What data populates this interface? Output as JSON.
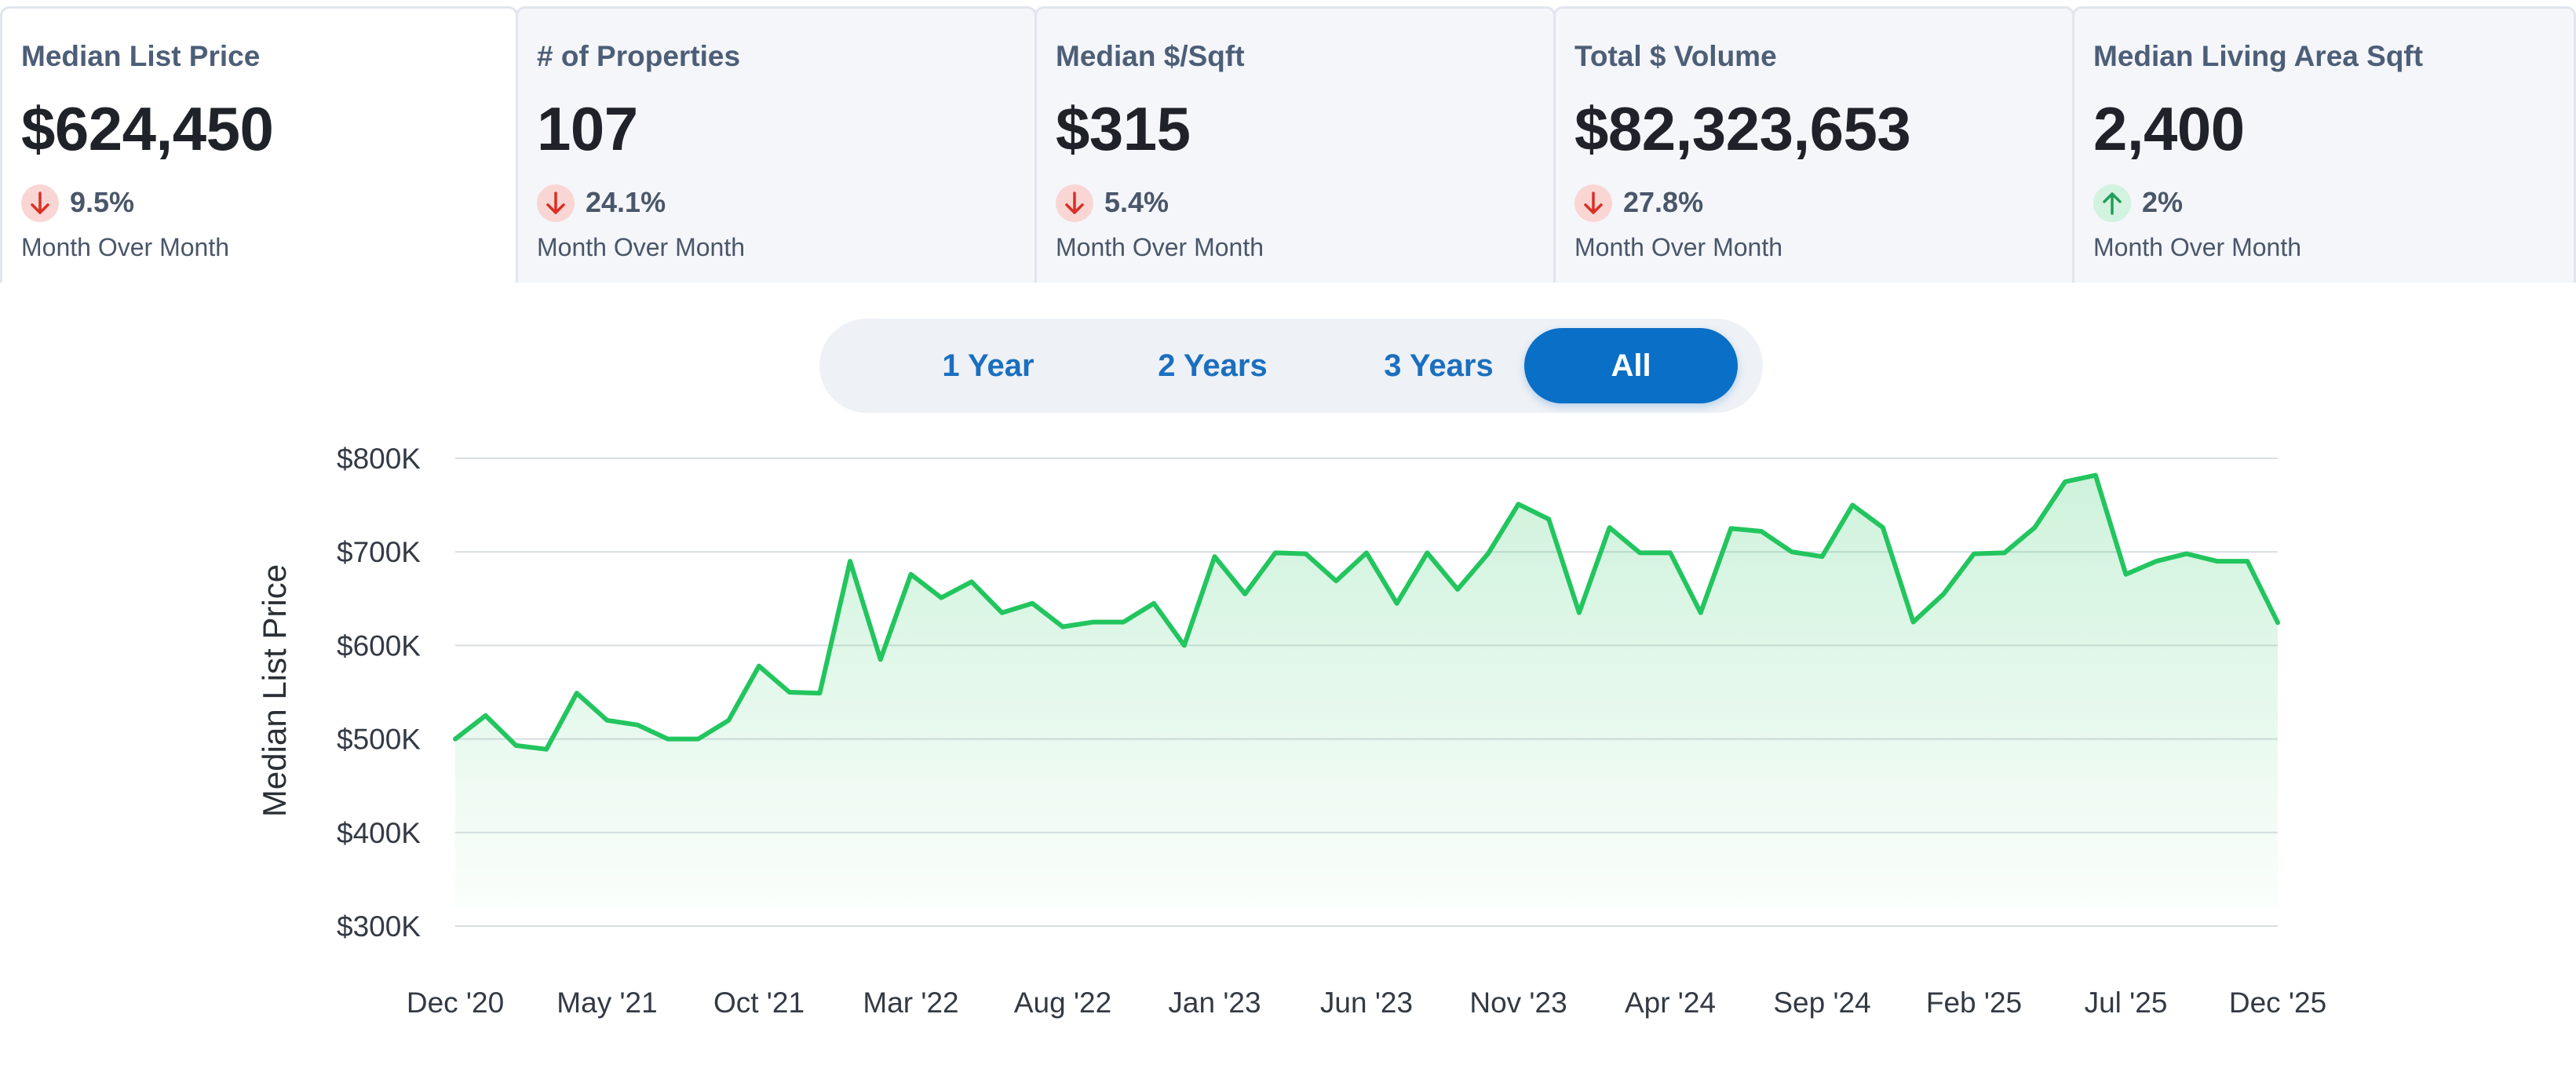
{
  "cards": [
    {
      "title": "Median List Price",
      "value": "$624,450",
      "delta": "9.5%",
      "direction": "down",
      "period": "Month Over Month"
    },
    {
      "title": "# of Properties",
      "value": "107",
      "delta": "24.1%",
      "direction": "down",
      "period": "Month Over Month"
    },
    {
      "title": "Median $/Sqft",
      "value": "$315",
      "delta": "5.4%",
      "direction": "down",
      "period": "Month Over Month"
    },
    {
      "title": "Total $ Volume",
      "value": "$82,323,653",
      "delta": "27.8%",
      "direction": "down",
      "period": "Month Over Month"
    },
    {
      "title": "Median Living Area Sqft",
      "value": "2,400",
      "delta": "2%",
      "direction": "up",
      "period": "Month Over Month"
    }
  ],
  "range_toggle": {
    "options": [
      "1 Year",
      "2 Years",
      "3 Years",
      "All"
    ],
    "selected": "All"
  },
  "colors": {
    "line": "#22c55e",
    "accent": "#0a6fc6",
    "down": "#d93025",
    "up": "#1e9e58"
  },
  "chart_data": {
    "type": "area",
    "title": "",
    "xlabel": "",
    "ylabel": "Median List Price",
    "ylim": [
      300000,
      800000
    ],
    "y_ticks": [
      "$300K",
      "$400K",
      "$500K",
      "$600K",
      "$700K",
      "$800K"
    ],
    "x_ticks": [
      "Dec '20",
      "May '21",
      "Oct '21",
      "Mar '22",
      "Aug '22",
      "Jan '23",
      "Jun '23",
      "Nov '23",
      "Apr '24",
      "Sep '24",
      "Feb '25",
      "Jul '25",
      "Dec '25"
    ],
    "grid": true,
    "series": [
      {
        "x": [
          "2020-12",
          "2021-01",
          "2021-02",
          "2021-03",
          "2021-04",
          "2021-05",
          "2021-06",
          "2021-07",
          "2021-08",
          "2021-09",
          "2021-10",
          "2021-11",
          "2021-12",
          "2022-01",
          "2022-02",
          "2022-03",
          "2022-04",
          "2022-05",
          "2022-06",
          "2022-07",
          "2022-08",
          "2022-09",
          "2022-10",
          "2022-11",
          "2022-12",
          "2023-01",
          "2023-02",
          "2023-03",
          "2023-04",
          "2023-05",
          "2023-06",
          "2023-07",
          "2023-08",
          "2023-09",
          "2023-10",
          "2023-11",
          "2023-12",
          "2024-01",
          "2024-02",
          "2024-03",
          "2024-04",
          "2024-05",
          "2024-06",
          "2024-07",
          "2024-08",
          "2024-09",
          "2024-10",
          "2024-11",
          "2024-12",
          "2025-01",
          "2025-02",
          "2025-03",
          "2025-04",
          "2025-05",
          "2025-06",
          "2025-07",
          "2025-08",
          "2025-09",
          "2025-10",
          "2025-11",
          "2025-12"
        ],
        "values": [
          500000,
          525000,
          493000,
          489000,
          549000,
          520000,
          515000,
          500000,
          500000,
          520000,
          578000,
          550000,
          549000,
          690000,
          585000,
          676000,
          651000,
          668000,
          635000,
          645000,
          620000,
          625000,
          625000,
          645000,
          600000,
          695000,
          655000,
          699000,
          698000,
          669000,
          699000,
          645000,
          699000,
          660000,
          698000,
          751000,
          735000,
          635000,
          726000,
          699000,
          699000,
          635000,
          725000,
          722000,
          700000,
          695000,
          750000,
          726000,
          625000,
          655000,
          698000,
          699000,
          726000,
          775000,
          782000,
          676000,
          690000,
          698000,
          690000,
          690000,
          624450
        ]
      }
    ]
  }
}
